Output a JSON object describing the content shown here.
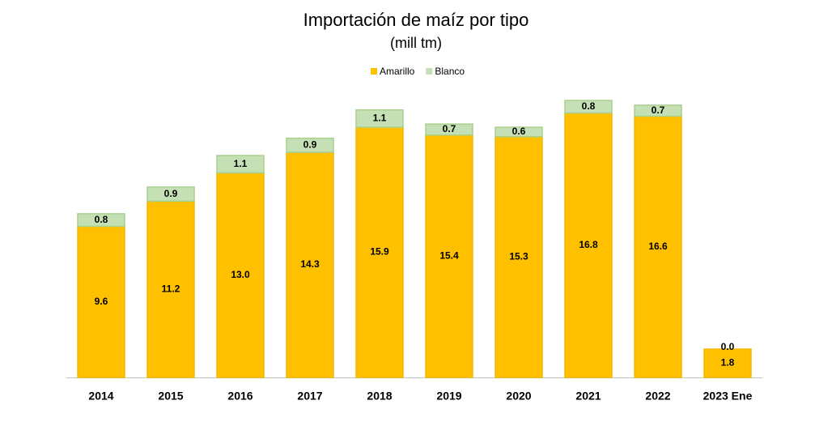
{
  "chart_data": {
    "type": "stacked-bar",
    "title": "Importación de maíz por tipo",
    "subtitle": "(mill tm)",
    "categories": [
      "2014",
      "2015",
      "2016",
      "2017",
      "2018",
      "2019",
      "2020",
      "2021",
      "2022",
      "2023 Ene"
    ],
    "series": [
      {
        "name": "Amarillo",
        "color": "#ffc000",
        "values": [
          9.6,
          11.2,
          13,
          14.3,
          15.9,
          15.4,
          15.3,
          16.8,
          16.6,
          1.8
        ],
        "value_labels": [
          "9.6",
          "11.2",
          "13.0",
          "14.3",
          "15.9",
          "15.4",
          "15.3",
          "16.8",
          "16.6",
          "1.8"
        ]
      },
      {
        "name": "Blanco",
        "color": "#c5e0b4",
        "values": [
          0.8,
          0.9,
          1.1,
          0.9,
          1.1,
          0.7,
          0.6,
          0.8,
          0.7,
          0
        ],
        "value_labels": [
          "0.8",
          "0.9",
          "1.1",
          "0.9",
          "1.1",
          "0.7",
          "0.6",
          "0.8",
          "0.7",
          "0.0"
        ]
      }
    ],
    "legend": "top"
  }
}
